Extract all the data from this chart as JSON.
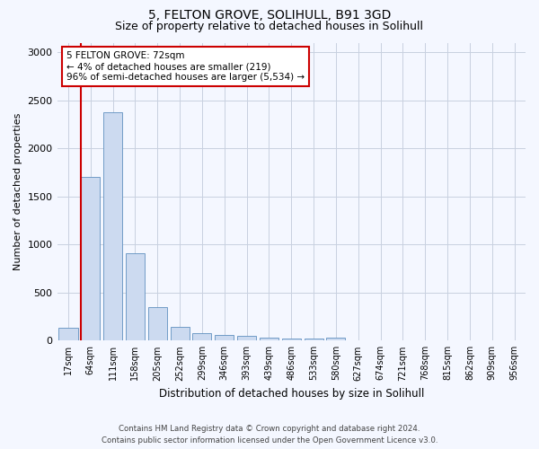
{
  "title1": "5, FELTON GROVE, SOLIHULL, B91 3GD",
  "title2": "Size of property relative to detached houses in Solihull",
  "xlabel": "Distribution of detached houses by size in Solihull",
  "ylabel": "Number of detached properties",
  "categories": [
    "17sqm",
    "64sqm",
    "111sqm",
    "158sqm",
    "205sqm",
    "252sqm",
    "299sqm",
    "346sqm",
    "393sqm",
    "439sqm",
    "486sqm",
    "533sqm",
    "580sqm",
    "627sqm",
    "674sqm",
    "721sqm",
    "768sqm",
    "815sqm",
    "862sqm",
    "909sqm",
    "956sqm"
  ],
  "values": [
    130,
    1700,
    2380,
    910,
    350,
    145,
    80,
    55,
    45,
    28,
    22,
    18,
    28,
    0,
    0,
    0,
    0,
    0,
    0,
    0,
    0
  ],
  "bar_color": "#ccdaf0",
  "bar_edge_color": "#6090c0",
  "grid_color": "#c8d0e0",
  "vline_color": "#cc0000",
  "annotation_title": "5 FELTON GROVE: 72sqm",
  "annotation_line1": "← 4% of detached houses are smaller (219)",
  "annotation_line2": "96% of semi-detached houses are larger (5,534) →",
  "annotation_box_facecolor": "#ffffff",
  "annotation_box_edgecolor": "#cc0000",
  "ylim": [
    0,
    3100
  ],
  "yticks": [
    0,
    500,
    1000,
    1500,
    2000,
    2500,
    3000
  ],
  "footer1": "Contains HM Land Registry data © Crown copyright and database right 2024.",
  "footer2": "Contains public sector information licensed under the Open Government Licence v3.0.",
  "bg_color": "#f4f7ff",
  "title1_fontsize": 10,
  "title2_fontsize": 9
}
